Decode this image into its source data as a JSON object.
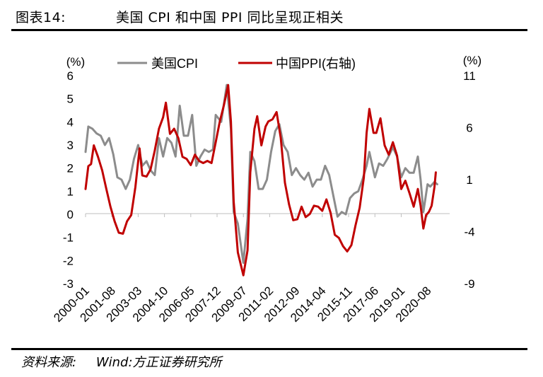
{
  "figure": {
    "number": "图表14:",
    "title": "美国 CPI 和中国 PPI 同比呈现正相关"
  },
  "source": {
    "label": "资料来源:",
    "value": "Wind:方正证券研究所"
  },
  "colors": {
    "us_cpi": "#8c8c8c",
    "china_ppi": "#c00000",
    "axis": "#bfbfbf",
    "text": "#000000"
  },
  "chart_data": {
    "type": "line",
    "y_unit_left": "(%)",
    "y_unit_right": "(%)",
    "x_tick_labels": [
      "2000-01",
      "2001-08",
      "2003-03",
      "2004-10",
      "2006-05",
      "2007-12",
      "2009-07",
      "2011-02",
      "2012-09",
      "2014-04",
      "2015-11",
      "2017-06",
      "2019-01",
      "2020-08"
    ],
    "x_range": [
      "2000-01",
      "2021-12"
    ],
    "y_left": {
      "min": -3,
      "max": 6,
      "ticks": [
        6,
        5,
        4,
        3,
        2,
        1,
        0,
        -1,
        -2,
        -3
      ]
    },
    "y_right": {
      "min": -9,
      "max": 11,
      "ticks": [
        11,
        6,
        1,
        -4,
        -9
      ]
    },
    "grid": false,
    "legend_position": "top",
    "series": [
      {
        "name": "美国CPI",
        "axis": "left",
        "color": "#8c8c8c",
        "points": [
          [
            "2000-01",
            2.7
          ],
          [
            "2000-03",
            3.8
          ],
          [
            "2000-06",
            3.7
          ],
          [
            "2000-09",
            3.5
          ],
          [
            "2000-12",
            3.4
          ],
          [
            "2001-03",
            3.0
          ],
          [
            "2001-06",
            3.3
          ],
          [
            "2001-09",
            2.6
          ],
          [
            "2001-12",
            1.6
          ],
          [
            "2002-03",
            1.5
          ],
          [
            "2002-06",
            1.1
          ],
          [
            "2002-09",
            1.5
          ],
          [
            "2002-12",
            2.4
          ],
          [
            "2003-03",
            3.0
          ],
          [
            "2003-06",
            2.1
          ],
          [
            "2003-09",
            2.3
          ],
          [
            "2003-12",
            1.9
          ],
          [
            "2004-03",
            1.7
          ],
          [
            "2004-06",
            3.3
          ],
          [
            "2004-09",
            2.5
          ],
          [
            "2004-12",
            3.3
          ],
          [
            "2005-03",
            3.1
          ],
          [
            "2005-06",
            2.5
          ],
          [
            "2005-09",
            4.7
          ],
          [
            "2005-12",
            3.4
          ],
          [
            "2006-03",
            3.4
          ],
          [
            "2006-06",
            4.3
          ],
          [
            "2006-09",
            2.1
          ],
          [
            "2006-12",
            2.5
          ],
          [
            "2007-03",
            2.8
          ],
          [
            "2007-06",
            2.7
          ],
          [
            "2007-09",
            2.8
          ],
          [
            "2007-11",
            4.3
          ],
          [
            "2008-03",
            4.0
          ],
          [
            "2008-07",
            5.6
          ],
          [
            "2008-10",
            3.7
          ],
          [
            "2008-12",
            0.1
          ],
          [
            "2009-03",
            -0.4
          ],
          [
            "2009-07",
            -2.1
          ],
          [
            "2009-10",
            -0.2
          ],
          [
            "2009-12",
            2.7
          ],
          [
            "2010-03",
            2.3
          ],
          [
            "2010-06",
            1.1
          ],
          [
            "2010-09",
            1.1
          ],
          [
            "2010-12",
            1.5
          ],
          [
            "2011-03",
            2.7
          ],
          [
            "2011-06",
            3.6
          ],
          [
            "2011-09",
            3.9
          ],
          [
            "2011-12",
            3.0
          ],
          [
            "2012-03",
            2.7
          ],
          [
            "2012-06",
            1.7
          ],
          [
            "2012-09",
            2.0
          ],
          [
            "2012-12",
            1.7
          ],
          [
            "2013-03",
            1.5
          ],
          [
            "2013-06",
            1.8
          ],
          [
            "2013-09",
            1.2
          ],
          [
            "2013-12",
            1.5
          ],
          [
            "2014-03",
            1.5
          ],
          [
            "2014-06",
            2.1
          ],
          [
            "2014-09",
            1.7
          ],
          [
            "2014-12",
            0.8
          ],
          [
            "2015-03",
            -0.1
          ],
          [
            "2015-06",
            0.1
          ],
          [
            "2015-09",
            0.0
          ],
          [
            "2015-12",
            0.7
          ],
          [
            "2016-03",
            0.9
          ],
          [
            "2016-06",
            1.0
          ],
          [
            "2016-09",
            1.5
          ],
          [
            "2016-12",
            2.1
          ],
          [
            "2017-02",
            2.7
          ],
          [
            "2017-06",
            1.6
          ],
          [
            "2017-09",
            2.2
          ],
          [
            "2017-12",
            2.1
          ],
          [
            "2018-03",
            2.4
          ],
          [
            "2018-07",
            2.9
          ],
          [
            "2018-10",
            2.5
          ],
          [
            "2019-01",
            1.6
          ],
          [
            "2019-04",
            2.0
          ],
          [
            "2019-07",
            1.8
          ],
          [
            "2019-10",
            1.8
          ],
          [
            "2020-01",
            2.5
          ],
          [
            "2020-03",
            1.5
          ],
          [
            "2020-05",
            0.1
          ],
          [
            "2020-08",
            1.3
          ],
          [
            "2020-10",
            1.2
          ],
          [
            "2021-01",
            1.4
          ],
          [
            "2021-03",
            1.3
          ]
        ]
      },
      {
        "name": "中国PPI(右轴)",
        "axis": "right",
        "color": "#c00000",
        "points": [
          [
            "2000-01",
            0.1
          ],
          [
            "2000-03",
            2.3
          ],
          [
            "2000-05",
            2.5
          ],
          [
            "2000-07",
            4.3
          ],
          [
            "2000-10",
            3.2
          ],
          [
            "2001-01",
            1.9
          ],
          [
            "2001-04",
            0.1
          ],
          [
            "2001-07",
            -1.6
          ],
          [
            "2001-10",
            -3.0
          ],
          [
            "2002-01",
            -4.1
          ],
          [
            "2002-04",
            -4.2
          ],
          [
            "2002-07",
            -3.0
          ],
          [
            "2002-10",
            -2.4
          ],
          [
            "2003-01",
            0.3
          ],
          [
            "2003-04",
            4.0
          ],
          [
            "2003-06",
            1.4
          ],
          [
            "2003-09",
            1.3
          ],
          [
            "2003-12",
            2.0
          ],
          [
            "2004-03",
            3.8
          ],
          [
            "2004-06",
            5.9
          ],
          [
            "2004-09",
            7.0
          ],
          [
            "2004-11",
            8.4
          ],
          [
            "2005-02",
            5.4
          ],
          [
            "2005-05",
            5.9
          ],
          [
            "2005-08",
            5.0
          ],
          [
            "2005-11",
            3.2
          ],
          [
            "2006-02",
            3.0
          ],
          [
            "2006-05",
            2.4
          ],
          [
            "2006-08",
            3.4
          ],
          [
            "2006-11",
            2.8
          ],
          [
            "2007-02",
            2.6
          ],
          [
            "2007-05",
            2.8
          ],
          [
            "2007-08",
            2.6
          ],
          [
            "2007-11",
            4.6
          ],
          [
            "2008-02",
            6.6
          ],
          [
            "2008-05",
            8.2
          ],
          [
            "2008-08",
            10.1
          ],
          [
            "2008-10",
            6.6
          ],
          [
            "2008-12",
            -1.1
          ],
          [
            "2009-03",
            -6.0
          ],
          [
            "2009-07",
            -8.2
          ],
          [
            "2009-10",
            -5.8
          ],
          [
            "2009-12",
            1.7
          ],
          [
            "2010-03",
            5.9
          ],
          [
            "2010-05",
            7.1
          ],
          [
            "2010-08",
            4.3
          ],
          [
            "2010-11",
            6.1
          ],
          [
            "2011-01",
            6.6
          ],
          [
            "2011-04",
            6.8
          ],
          [
            "2011-07",
            7.5
          ],
          [
            "2011-10",
            5.0
          ],
          [
            "2012-01",
            0.7
          ],
          [
            "2012-04",
            -1.4
          ],
          [
            "2012-07",
            -2.9
          ],
          [
            "2012-10",
            -2.8
          ],
          [
            "2013-01",
            -1.6
          ],
          [
            "2013-04",
            -2.6
          ],
          [
            "2013-07",
            -2.3
          ],
          [
            "2013-10",
            -1.5
          ],
          [
            "2014-01",
            -1.6
          ],
          [
            "2014-04",
            -2.0
          ],
          [
            "2014-07",
            -0.9
          ],
          [
            "2014-10",
            -2.2
          ],
          [
            "2015-01",
            -4.3
          ],
          [
            "2015-04",
            -4.6
          ],
          [
            "2015-07",
            -5.4
          ],
          [
            "2015-10",
            -5.9
          ],
          [
            "2016-01",
            -5.3
          ],
          [
            "2016-04",
            -3.4
          ],
          [
            "2016-07",
            -1.7
          ],
          [
            "2016-10",
            1.2
          ],
          [
            "2016-12",
            5.5
          ],
          [
            "2017-02",
            7.8
          ],
          [
            "2017-05",
            5.5
          ],
          [
            "2017-07",
            5.5
          ],
          [
            "2017-10",
            6.9
          ],
          [
            "2018-01",
            4.3
          ],
          [
            "2018-04",
            3.4
          ],
          [
            "2018-07",
            4.6
          ],
          [
            "2018-10",
            3.3
          ],
          [
            "2019-01",
            0.1
          ],
          [
            "2019-04",
            0.9
          ],
          [
            "2019-07",
            -0.3
          ],
          [
            "2019-10",
            -1.6
          ],
          [
            "2020-01",
            0.1
          ],
          [
            "2020-03",
            -1.5
          ],
          [
            "2020-05",
            -3.7
          ],
          [
            "2020-07",
            -2.4
          ],
          [
            "2020-09",
            -2.1
          ],
          [
            "2020-11",
            -1.5
          ],
          [
            "2021-01",
            0.3
          ],
          [
            "2021-02",
            1.7
          ]
        ]
      }
    ]
  }
}
